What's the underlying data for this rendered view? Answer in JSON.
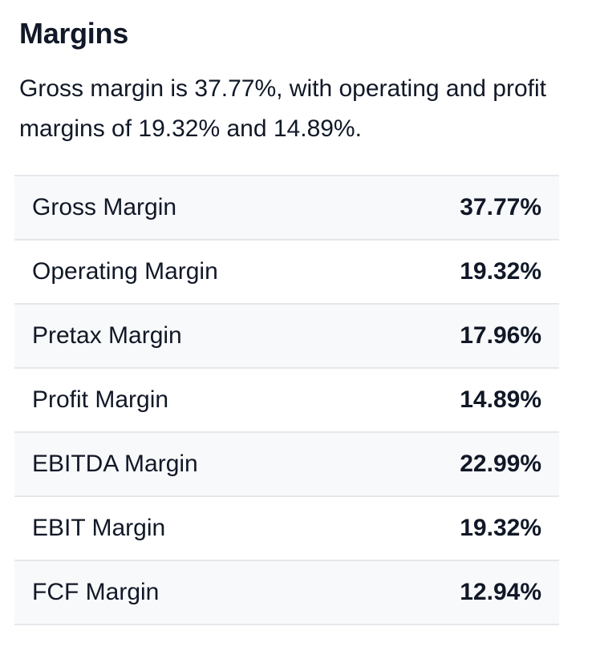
{
  "section": {
    "title": "Margins",
    "summary": "Gross margin is 37.77%, with operating and profit margins of 19.32% and 14.89%."
  },
  "margins": [
    {
      "label": "Gross Margin",
      "value": "37.77%"
    },
    {
      "label": "Operating Margin",
      "value": "19.32%"
    },
    {
      "label": "Pretax Margin",
      "value": "17.96%"
    },
    {
      "label": "Profit Margin",
      "value": "14.89%"
    },
    {
      "label": "EBITDA Margin",
      "value": "22.99%"
    },
    {
      "label": "EBIT Margin",
      "value": "19.32%"
    },
    {
      "label": "FCF Margin",
      "value": "12.94%"
    }
  ]
}
